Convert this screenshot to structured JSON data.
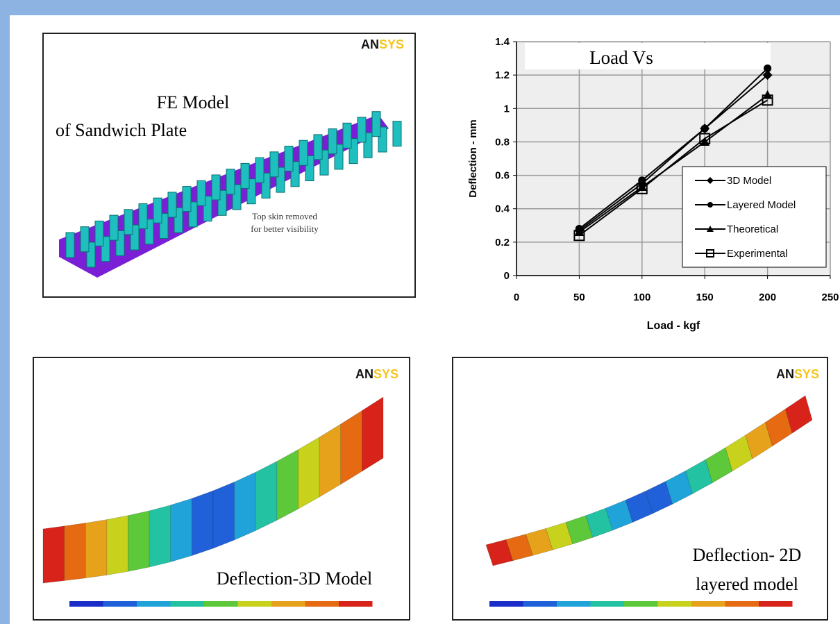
{
  "panels": {
    "fe_model": {
      "title_line1": "FE Model",
      "title_line2": "of  Sandwich Plate",
      "note_line1": "Top skin removed",
      "note_line2": "for better visibility",
      "logo_a": "AN",
      "logo_b": "SYS"
    },
    "deflection_3d": {
      "caption": "Deflection-3D Model",
      "logo_a": "AN",
      "logo_b": "SYS"
    },
    "deflection_2d": {
      "caption_line1": "Deflection- 2D",
      "caption_line2": "layered model",
      "logo_a": "AN",
      "logo_b": "SYS"
    }
  },
  "chart_data": {
    "type": "line",
    "title": "Load Vs",
    "x_label": "Load - kgf",
    "y_label": "Deflection - mm",
    "x": [
      50,
      100,
      150,
      200
    ],
    "series": [
      {
        "name": "3D Model",
        "color": "#000000",
        "marker": "diamond",
        "values": [
          0.27,
          0.55,
          0.88,
          1.2
        ]
      },
      {
        "name": "Layered Model",
        "color": "#000000",
        "marker": "circle",
        "values": [
          0.28,
          0.57,
          0.88,
          1.24
        ]
      },
      {
        "name": "Theoretical",
        "color": "#000000",
        "marker": "triangle",
        "values": [
          0.26,
          0.53,
          0.8,
          1.08
        ]
      },
      {
        "name": "Experimental",
        "color": "#000000",
        "marker": "square",
        "values": [
          0.24,
          0.52,
          0.82,
          1.05
        ]
      }
    ],
    "xlim": [
      0,
      250
    ],
    "xticks": [
      0,
      50,
      100,
      150,
      200,
      250
    ],
    "ylim": [
      0,
      1.4
    ],
    "yticks": [
      0,
      0.2,
      0.4,
      0.6,
      0.8,
      1,
      1.2,
      1.4
    ],
    "grid": true,
    "legend": "lower right"
  }
}
